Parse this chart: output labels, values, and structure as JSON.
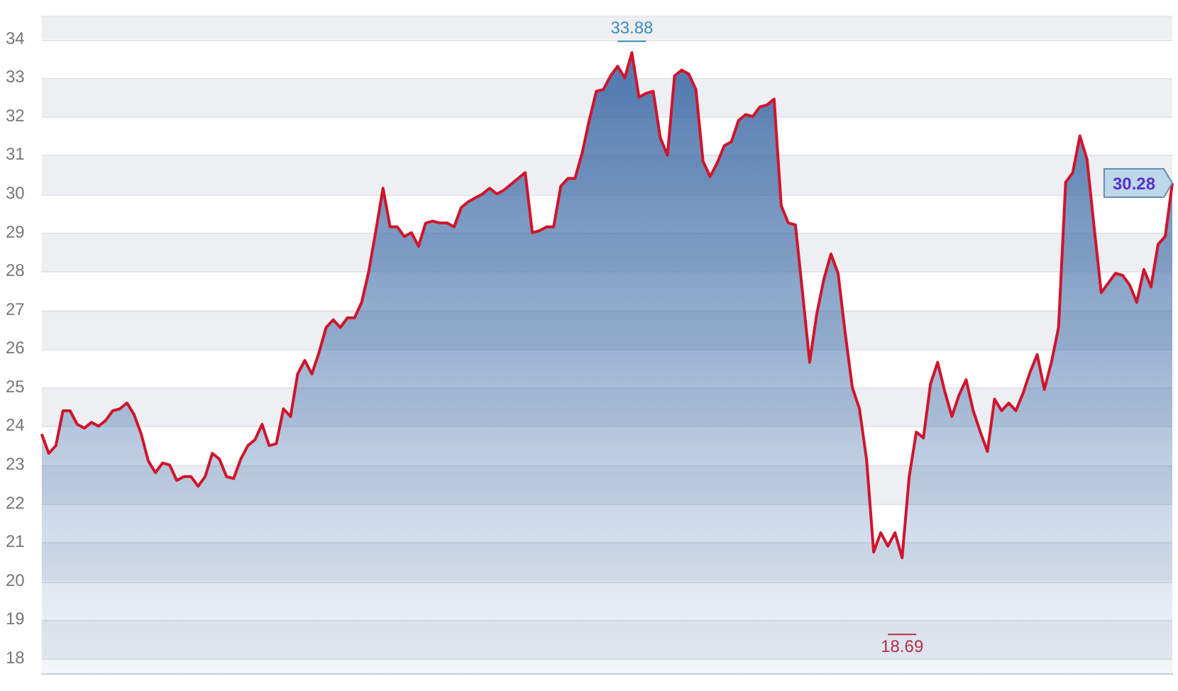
{
  "chart_data": {
    "type": "area",
    "categories": [
      null,
      null,
      null,
      null,
      null,
      null,
      null,
      null,
      null,
      null,
      null,
      null,
      null,
      null,
      null,
      null,
      null,
      null,
      null,
      null,
      null,
      null,
      null,
      null,
      null,
      null,
      null,
      null,
      null,
      null,
      null,
      null,
      null,
      null,
      null,
      null,
      null,
      null,
      null,
      null,
      null,
      null,
      null,
      null,
      null,
      null,
      null,
      null,
      null,
      null,
      null,
      null,
      null,
      null,
      null,
      null,
      null,
      null,
      null,
      null,
      null,
      null,
      null,
      null,
      null,
      null,
      null,
      null,
      null,
      null,
      null,
      null,
      null,
      null,
      null,
      null,
      null,
      null,
      null,
      null,
      null,
      null,
      null,
      null,
      null,
      null,
      null,
      null,
      null,
      null,
      null,
      null,
      null,
      null,
      null,
      null,
      null,
      null,
      null,
      null,
      null,
      null,
      null,
      null,
      null,
      null,
      null,
      null,
      null,
      null,
      null,
      null,
      null,
      null,
      null,
      null,
      null,
      null,
      null,
      null,
      null,
      null,
      null,
      null,
      null,
      null,
      null,
      null,
      null,
      null,
      null,
      null,
      null,
      null,
      null,
      null,
      null,
      null,
      null,
      null,
      null,
      null,
      null,
      null,
      null,
      null,
      null,
      null,
      null,
      null,
      null,
      null,
      null,
      null,
      null,
      null,
      null,
      null,
      null,
      null
    ],
    "series": [
      {
        "color": "#d0142c",
        "values": [
          23.8,
          23.3,
          23.5,
          24.4,
          24.4,
          24.05,
          23.95,
          24.1,
          24.0,
          24.15,
          24.4,
          24.45,
          24.6,
          24.3,
          23.8,
          23.1,
          22.8,
          23.05,
          23.0,
          22.6,
          22.7,
          22.7,
          22.45,
          22.7,
          23.3,
          23.15,
          22.7,
          22.65,
          23.15,
          23.5,
          23.65,
          24.05,
          23.5,
          23.55,
          24.45,
          24.25,
          25.35,
          25.7,
          25.35,
          25.9,
          26.55,
          26.75,
          26.55,
          26.8,
          26.8,
          27.2,
          28.0,
          29.05,
          30.15,
          29.15,
          29.15,
          28.9,
          29.0,
          28.65,
          29.25,
          29.3,
          29.25,
          29.25,
          29.15,
          29.65,
          29.8,
          29.9,
          30.0,
          30.15,
          30.0,
          30.1,
          30.25,
          30.4,
          30.55,
          29.0,
          29.05,
          29.15,
          29.15,
          30.2,
          30.4,
          30.4,
          31.05,
          31.9,
          32.65,
          32.7,
          33.05,
          33.3,
          33.0,
          33.65,
          32.5,
          32.6,
          32.65,
          31.45,
          31.0,
          33.05,
          33.2,
          33.1,
          32.7,
          30.85,
          30.45,
          30.8,
          31.25,
          31.35,
          31.9,
          32.05,
          32.0,
          32.25,
          32.3,
          32.45,
          29.7,
          29.25,
          29.2,
          27.45,
          25.65,
          26.9,
          27.8,
          28.45,
          27.95,
          26.4,
          25.0,
          24.45,
          23.15,
          20.75,
          21.25,
          20.9,
          21.25,
          20.6,
          22.7,
          23.85,
          23.7,
          25.1,
          25.65,
          24.9,
          24.25,
          24.8,
          25.2,
          24.4,
          23.85,
          23.35,
          24.7,
          24.4,
          24.6,
          24.4,
          24.85,
          25.4,
          25.85,
          24.95,
          25.65,
          26.55,
          30.3,
          30.55,
          31.5,
          30.9,
          29.15,
          27.45,
          27.7,
          27.95,
          27.9,
          27.65,
          27.2,
          28.05,
          27.6,
          28.7,
          28.9,
          30.28
        ]
      }
    ],
    "ylim": [
      17.6,
      34.6
    ],
    "yticks": [
      18,
      19,
      20,
      21,
      22,
      23,
      24,
      25,
      26,
      27,
      28,
      29,
      30,
      31,
      32,
      33,
      34
    ],
    "grid": "y",
    "annotations": [
      "33.88",
      "18.69",
      "30.28"
    ]
  }
}
